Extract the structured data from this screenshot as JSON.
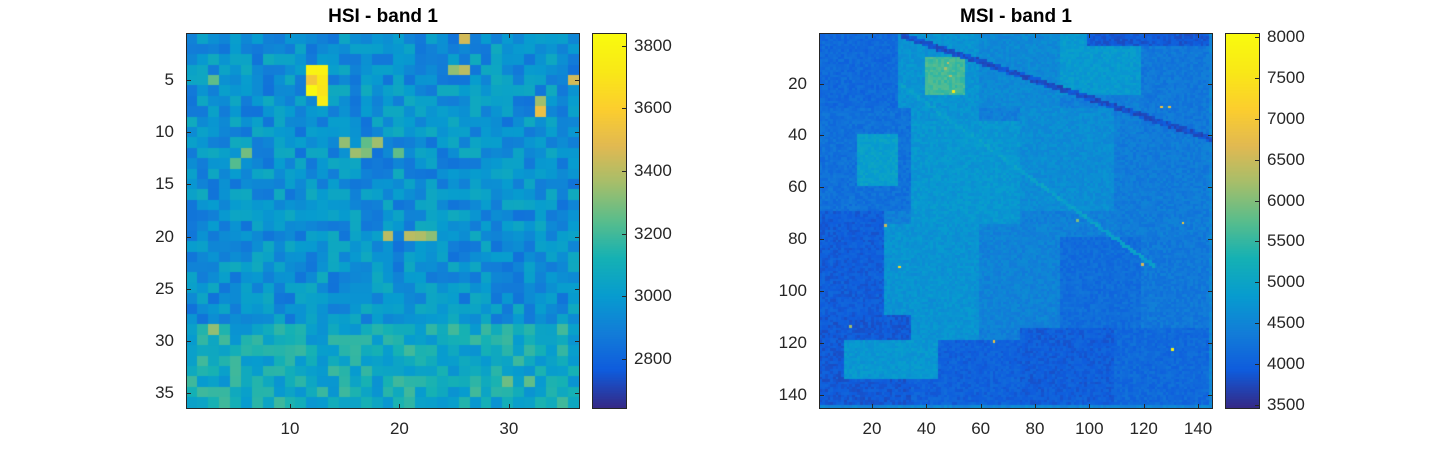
{
  "chart_data": [
    {
      "type": "heatmap",
      "title": "HSI - band 1",
      "xlabel": "",
      "ylabel": "",
      "grid_size": [
        36,
        36
      ],
      "xlim": [
        0.5,
        36.5
      ],
      "ylim": [
        0.5,
        36.5
      ],
      "y_reversed": true,
      "x_ticks": [
        10,
        20,
        30
      ],
      "y_ticks": [
        5,
        10,
        15,
        20,
        25,
        30,
        35
      ],
      "colormap": "parula",
      "color_limits": [
        2640,
        3840
      ],
      "colorbar_ticks": [
        2800,
        3000,
        3200,
        3400,
        3600,
        3800
      ],
      "base_value": 2960,
      "lower_band_rows_from": 29,
      "lower_band_value": 3080,
      "hot_cells": [
        {
          "x": 12,
          "y": 4,
          "value": 3790
        },
        {
          "x": 13,
          "y": 4,
          "value": 3780
        },
        {
          "x": 12,
          "y": 5,
          "value": 3560
        },
        {
          "x": 13,
          "y": 5,
          "value": 3720
        },
        {
          "x": 12,
          "y": 6,
          "value": 3820
        },
        {
          "x": 13,
          "y": 6,
          "value": 3700
        },
        {
          "x": 13,
          "y": 7,
          "value": 3750
        },
        {
          "x": 26,
          "y": 1,
          "value": 3450
        },
        {
          "x": 26,
          "y": 4,
          "value": 3400
        },
        {
          "x": 25,
          "y": 4,
          "value": 3330
        },
        {
          "x": 36,
          "y": 5,
          "value": 3450
        },
        {
          "x": 33,
          "y": 7,
          "value": 3350
        },
        {
          "x": 33,
          "y": 8,
          "value": 3520
        },
        {
          "x": 3,
          "y": 5,
          "value": 3250
        },
        {
          "x": 15,
          "y": 11,
          "value": 3330
        },
        {
          "x": 17,
          "y": 11,
          "value": 3250
        },
        {
          "x": 18,
          "y": 11,
          "value": 3350
        },
        {
          "x": 16,
          "y": 12,
          "value": 3350
        },
        {
          "x": 17,
          "y": 12,
          "value": 3300
        },
        {
          "x": 6,
          "y": 12,
          "value": 3280
        },
        {
          "x": 5,
          "y": 13,
          "value": 3230
        },
        {
          "x": 20,
          "y": 12,
          "value": 3250
        },
        {
          "x": 19,
          "y": 20,
          "value": 3400
        },
        {
          "x": 21,
          "y": 20,
          "value": 3400
        },
        {
          "x": 22,
          "y": 20,
          "value": 3380
        },
        {
          "x": 23,
          "y": 20,
          "value": 3320
        },
        {
          "x": 3,
          "y": 29,
          "value": 3330
        },
        {
          "x": 30,
          "y": 34,
          "value": 3270
        },
        {
          "x": 32,
          "y": 34,
          "value": 3250
        }
      ]
    },
    {
      "type": "heatmap",
      "title": "MSI - band 1",
      "xlabel": "",
      "ylabel": "",
      "grid_size": [
        145,
        145
      ],
      "xlim": [
        0.5,
        145.5
      ],
      "ylim": [
        0.5,
        145.5
      ],
      "y_reversed": true,
      "x_ticks": [
        20,
        40,
        60,
        80,
        100,
        120,
        140
      ],
      "y_ticks": [
        20,
        40,
        60,
        80,
        100,
        120,
        140
      ],
      "colormap": "parula",
      "color_limits": [
        3450,
        8050
      ],
      "colorbar_ticks": [
        3500,
        4000,
        4500,
        5000,
        5500,
        6000,
        6500,
        7000,
        7500,
        8000
      ],
      "base_value": 4500,
      "hot_cells": [
        {
          "x": 48,
          "y": 12,
          "value": 6400
        },
        {
          "x": 47,
          "y": 14,
          "value": 6200
        },
        {
          "x": 49,
          "y": 17,
          "value": 6300
        },
        {
          "x": 50,
          "y": 23,
          "value": 7600
        },
        {
          "x": 127,
          "y": 29,
          "value": 7000
        },
        {
          "x": 130,
          "y": 29,
          "value": 6900
        },
        {
          "x": 25,
          "y": 75,
          "value": 6500
        },
        {
          "x": 30,
          "y": 91,
          "value": 7300
        },
        {
          "x": 135,
          "y": 74,
          "value": 7100
        },
        {
          "x": 120,
          "y": 90,
          "value": 6600
        },
        {
          "x": 65,
          "y": 120,
          "value": 6900
        },
        {
          "x": 131,
          "y": 123,
          "value": 7900
        },
        {
          "x": 12,
          "y": 114,
          "value": 6200
        },
        {
          "x": 96,
          "y": 73,
          "value": 6000
        }
      ]
    }
  ]
}
